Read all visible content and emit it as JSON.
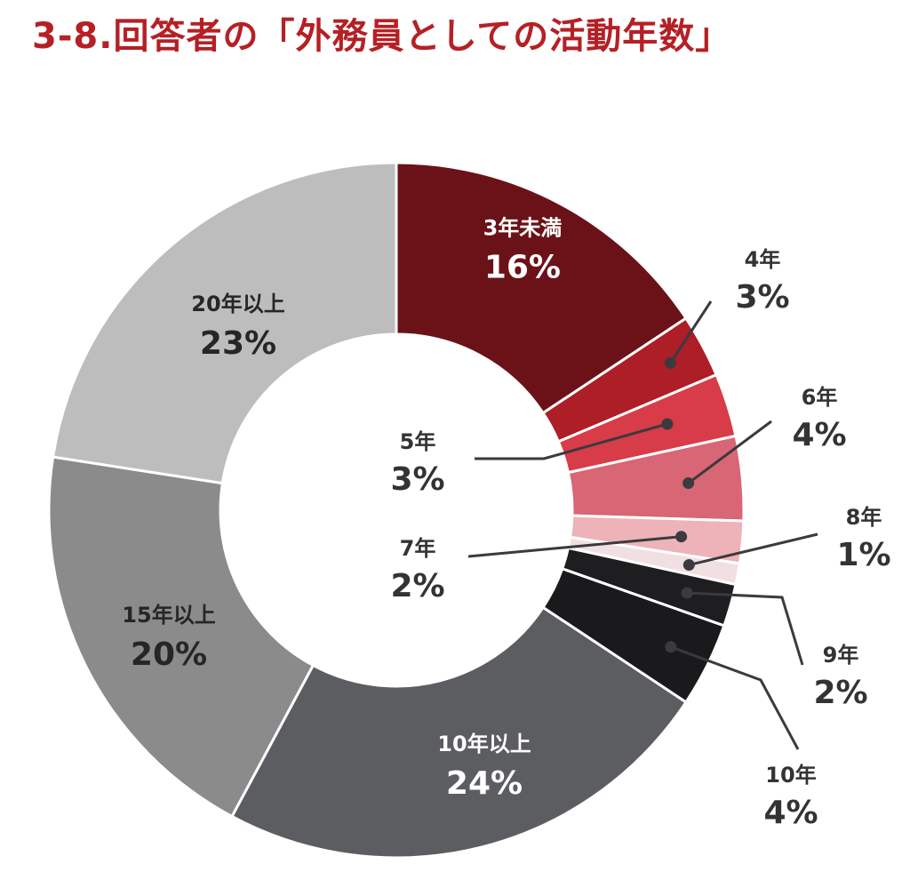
{
  "title": "3-8.回答者の「外務員としての活動年数」",
  "chart_data": {
    "type": "pie",
    "title": "3-8.回答者の「外務員としての活動年数」",
    "donut": true,
    "start": "12 o'clock, clockwise",
    "slices": [
      {
        "label": "3年未満",
        "value": 16,
        "display": "16%",
        "color": "#6b1218"
      },
      {
        "label": "4年",
        "value": 3,
        "display": "3%",
        "color": "#ad1e26"
      },
      {
        "label": "5年",
        "value": 3,
        "display": "3%",
        "color": "#d73c48"
      },
      {
        "label": "6年",
        "value": 4,
        "display": "4%",
        "color": "#d86674"
      },
      {
        "label": "7年",
        "value": 2,
        "display": "2%",
        "color": "#edb3b9"
      },
      {
        "label": "8年",
        "value": 1,
        "display": "1%",
        "color": "#f1e0e2"
      },
      {
        "label": "9年",
        "value": 2,
        "display": "2%",
        "color": "#1e1e21"
      },
      {
        "label": "10年",
        "value": 4,
        "display": "4%",
        "color": "#1a1a1d"
      },
      {
        "label": "10年以上",
        "value": 24,
        "display": "24%",
        "color": "#5c5d60"
      },
      {
        "label": "15年以上",
        "value": 20,
        "display": "20%",
        "color": "#8b8b8b"
      },
      {
        "label": "20年以上",
        "value": 23,
        "display": "23%",
        "color": "#bdbdbd"
      }
    ],
    "label_text_color": "#333333",
    "inside_label_dark_color": "#262626",
    "inside_label_light_color": "#ffffff",
    "leader_line_color": "#3a3a3f"
  }
}
